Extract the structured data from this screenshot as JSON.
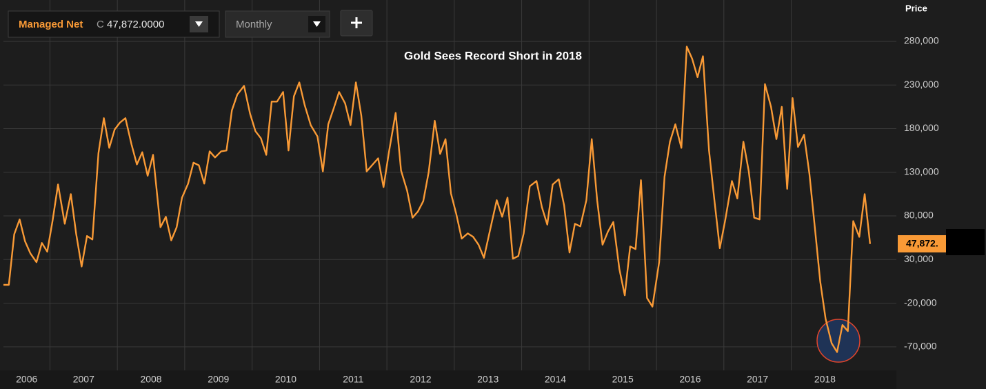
{
  "toolbar": {
    "readout_prefix": "C",
    "readout": "47,872.0000",
    "interval": "Monthly"
  },
  "chart_data": {
    "type": "line",
    "title": "Gold Sees Record Short in 2018",
    "y_axis_label": "Price",
    "last_label": "47,872.",
    "xlim": [
      2006.31,
      2019.56
    ],
    "xticks": [
      2006,
      2007,
      2008,
      2009,
      2010,
      2011,
      2012,
      2013,
      2014,
      2015,
      2016,
      2017,
      2018
    ],
    "ylim": [
      -97000,
      292000
    ],
    "yticks": [
      {
        "value": -70000,
        "label": "-70,000"
      },
      {
        "value": -20000,
        "label": "-20,000"
      },
      {
        "value": 30000,
        "label": "30,000"
      },
      {
        "value": 80000,
        "label": "80,000"
      },
      {
        "value": 130000,
        "label": "130,000"
      },
      {
        "value": 180000,
        "label": "180,000"
      },
      {
        "value": 230000,
        "label": "230,000"
      },
      {
        "value": 280000,
        "label": "280,000"
      }
    ],
    "grid": true,
    "x": [
      2006.31,
      2006.39,
      2006.47,
      2006.55,
      2006.63,
      2006.71,
      2006.8,
      2006.88,
      2006.96,
      2007.04,
      2007.12,
      2007.22,
      2007.31,
      2007.39,
      2007.47,
      2007.55,
      2007.63,
      2007.72,
      2007.8,
      2007.88,
      2007.96,
      2008.04,
      2008.12,
      2008.21,
      2008.29,
      2008.37,
      2008.45,
      2008.53,
      2008.64,
      2008.72,
      2008.8,
      2008.88,
      2008.96,
      2009.05,
      2009.13,
      2009.21,
      2009.29,
      2009.37,
      2009.45,
      2009.54,
      2009.62,
      2009.7,
      2009.78,
      2009.88,
      2009.97,
      2010.05,
      2010.13,
      2010.21,
      2010.29,
      2010.37,
      2010.46,
      2010.54,
      2010.62,
      2010.7,
      2010.78,
      2010.87,
      2010.97,
      2011.05,
      2011.13,
      2011.21,
      2011.29,
      2011.38,
      2011.46,
      2011.54,
      2011.62,
      2011.7,
      2011.79,
      2011.87,
      2011.95,
      2012.03,
      2012.13,
      2012.21,
      2012.3,
      2012.38,
      2012.46,
      2012.54,
      2012.62,
      2012.71,
      2012.79,
      2012.87,
      2012.95,
      2013.03,
      2013.11,
      2013.2,
      2013.28,
      2013.36,
      2013.44,
      2013.54,
      2013.63,
      2013.71,
      2013.79,
      2013.87,
      2013.95,
      2014.03,
      2014.12,
      2014.22,
      2014.3,
      2014.38,
      2014.46,
      2014.55,
      2014.63,
      2014.71,
      2014.79,
      2014.87,
      2014.96,
      2015.04,
      2015.12,
      2015.2,
      2015.28,
      2015.36,
      2015.45,
      2015.53,
      2015.61,
      2015.69,
      2015.77,
      2015.86,
      2015.94,
      2016.04,
      2016.12,
      2016.2,
      2016.28,
      2016.37,
      2016.45,
      2016.53,
      2016.61,
      2016.69,
      2016.78,
      2016.86,
      2016.94,
      2017.02,
      2017.12,
      2017.2,
      2017.29,
      2017.37,
      2017.45,
      2017.53,
      2017.61,
      2017.7,
      2017.78,
      2017.86,
      2017.94,
      2018.02,
      2018.1,
      2018.19,
      2018.27,
      2018.35,
      2018.43,
      2018.51,
      2018.6,
      2018.68,
      2018.76,
      2018.84,
      2018.92,
      2019.01,
      2019.09,
      2019.17
    ],
    "series": [
      {
        "name": "Managed Net",
        "color": "#f99a36",
        "values": [
          1000,
          1000,
          59000,
          76000,
          51000,
          37000,
          27000,
          49000,
          39000,
          75000,
          116000,
          71000,
          105000,
          59000,
          22000,
          57000,
          53000,
          152000,
          192000,
          158000,
          179000,
          187000,
          192000,
          162000,
          139000,
          153000,
          126000,
          150000,
          67000,
          79000,
          52000,
          67000,
          101000,
          117000,
          141000,
          138000,
          117000,
          154000,
          147000,
          154000,
          155000,
          201000,
          219000,
          229000,
          197000,
          177000,
          169000,
          150000,
          211000,
          211000,
          222000,
          155000,
          217000,
          233000,
          207000,
          184000,
          171000,
          131000,
          185000,
          203000,
          222000,
          209000,
          184000,
          233000,
          195000,
          131000,
          139000,
          146000,
          113000,
          153000,
          198000,
          132000,
          109000,
          78000,
          85000,
          97000,
          130000,
          189000,
          151000,
          168000,
          106000,
          82000,
          54000,
          60000,
          56000,
          47000,
          32000,
          67000,
          98000,
          79000,
          101000,
          31000,
          34000,
          60000,
          114000,
          120000,
          90000,
          70000,
          116000,
          122000,
          92000,
          38000,
          71000,
          68000,
          98000,
          168000,
          98000,
          47000,
          62000,
          73000,
          19000,
          -11000,
          45000,
          42000,
          121000,
          -14000,
          -24000,
          27000,
          125000,
          165000,
          185000,
          158000,
          274000,
          260000,
          239000,
          263000,
          155000,
          98000,
          43000,
          75000,
          120000,
          100000,
          165000,
          131000,
          78000,
          76000,
          231000,
          205000,
          168000,
          205000,
          111000,
          215000,
          159000,
          173000,
          128000,
          67000,
          5000,
          -38000,
          -66000,
          -76000,
          -45000,
          -52000,
          74000,
          56000,
          105000,
          47872
        ]
      }
    ]
  }
}
